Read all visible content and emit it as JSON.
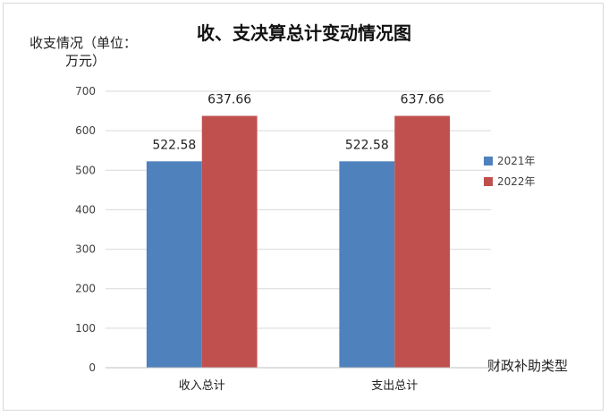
{
  "chart_data": {
    "type": "bar",
    "title": "收、支决算总计变动情况图",
    "ylabel_lines": [
      "收支情况（单位：",
      "万元）"
    ],
    "xlabel": "财政补助类型",
    "categories": [
      "收入总计",
      "支出总计"
    ],
    "series": [
      {
        "name": "2021年",
        "values": [
          522.58,
          522.58
        ],
        "labels": [
          "522.58",
          "522.58"
        ],
        "color": "#4f81bd"
      },
      {
        "name": "2022年",
        "values": [
          637.66,
          637.66
        ],
        "labels": [
          "637.66",
          "637.66"
        ],
        "color": "#c0504d"
      }
    ],
    "ylim": [
      0,
      700
    ],
    "yticks": [
      0,
      100,
      200,
      300,
      400,
      500,
      600,
      700
    ],
    "grid": true,
    "legend_position": "right"
  }
}
